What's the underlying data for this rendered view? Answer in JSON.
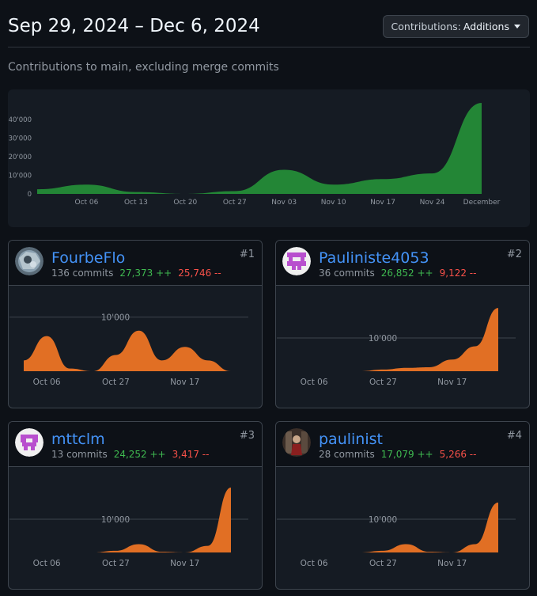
{
  "header": {
    "date_range": "Sep 29, 2024 – Dec 6, 2024",
    "contributions_label": "Contributions:",
    "contributions_value": "Additions"
  },
  "subtitle": "Contributions to main, excluding merge commits",
  "colors": {
    "main_area": "#238636",
    "card_area": "#e16f24",
    "added": "#3fb950",
    "deleted": "#f85149",
    "link": "#4493f8"
  },
  "chart_data": [
    {
      "type": "area",
      "title": "",
      "x": [
        "Sep 29",
        "Oct 06",
        "Oct 13",
        "Oct 20",
        "Oct 27",
        "Nov 03",
        "Nov 10",
        "Nov 17",
        "Nov 24",
        "December"
      ],
      "series": [
        {
          "values": [
            2500,
            5000,
            1000,
            0,
            1500,
            13000,
            5000,
            8000,
            11000,
            49000
          ]
        }
      ],
      "x_tick_labels": [
        "Oct 06",
        "Oct 13",
        "Oct 20",
        "Oct 27",
        "Nov 03",
        "Nov 10",
        "Nov 17",
        "Nov 24",
        "December"
      ],
      "y_tick_labels": [
        "0",
        "10'000",
        "20'000",
        "30'000",
        "40'000"
      ],
      "y_ticks": [
        0,
        10000,
        20000,
        30000,
        40000
      ],
      "ylim": [
        0,
        49000
      ],
      "grid": false
    },
    {
      "type": "area",
      "x": [
        "Sep 29",
        "Oct 06",
        "Oct 13",
        "Oct 20",
        "Oct 27",
        "Nov 03",
        "Nov 10",
        "Nov 17",
        "Nov 24",
        "Dec 01"
      ],
      "series": [
        {
          "values": [
            2000,
            6500,
            500,
            0,
            3000,
            7500,
            2000,
            4500,
            2000,
            0
          ]
        }
      ],
      "x_tick_labels": [
        "Oct 06",
        "Oct 27",
        "Nov 17"
      ],
      "y_tick_labels": [
        "10'000"
      ],
      "y_ticks": [
        10000
      ],
      "ylim": [
        0,
        12000
      ],
      "grid": true
    },
    {
      "type": "area",
      "x": [
        "Sep 29",
        "Oct 06",
        "Oct 13",
        "Oct 20",
        "Oct 27",
        "Nov 03",
        "Nov 10",
        "Nov 17",
        "Nov 24",
        "Dec 01"
      ],
      "series": [
        {
          "values": [
            0,
            0,
            0,
            0,
            500,
            1000,
            1200,
            3500,
            7500,
            19000
          ]
        }
      ],
      "x_tick_labels": [
        "Oct 06",
        "Oct 27",
        "Nov 17"
      ],
      "y_tick_labels": [
        "10'000"
      ],
      "y_ticks": [
        10000
      ],
      "ylim": [
        0,
        19500
      ],
      "grid": true
    },
    {
      "type": "area",
      "x": [
        "Sep 29",
        "Oct 06",
        "Oct 13",
        "Oct 20",
        "Oct 27",
        "Nov 03",
        "Nov 10",
        "Nov 17",
        "Nov 24",
        "Dec 01"
      ],
      "series": [
        {
          "values": [
            0,
            0,
            0,
            0,
            500,
            2500,
            200,
            0,
            2000,
            19500
          ]
        }
      ],
      "x_tick_labels": [
        "Oct 06",
        "Oct 27",
        "Nov 17"
      ],
      "y_tick_labels": [
        "10'000"
      ],
      "y_ticks": [
        10000
      ],
      "ylim": [
        0,
        19500
      ],
      "grid": true
    },
    {
      "type": "area",
      "x": [
        "Sep 29",
        "Oct 06",
        "Oct 13",
        "Oct 20",
        "Oct 27",
        "Nov 03",
        "Nov 10",
        "Nov 17",
        "Nov 24",
        "Dec 01"
      ],
      "series": [
        {
          "values": [
            0,
            0,
            0,
            0,
            500,
            2500,
            200,
            0,
            2500,
            15000
          ]
        }
      ],
      "x_tick_labels": [
        "Oct 06",
        "Oct 27",
        "Nov 17"
      ],
      "y_tick_labels": [
        "10'000"
      ],
      "y_ticks": [
        10000
      ],
      "ylim": [
        0,
        19500
      ],
      "grid": true
    }
  ],
  "contributors": [
    {
      "name": "FourbeFlo",
      "commits": "136 commits",
      "additions": "27,373 ++",
      "deletions": "25,746 --",
      "rank": "#1",
      "avatar": "photo-avatar"
    },
    {
      "name": "Pauliniste4053",
      "commits": "36 commits",
      "additions": "26,852 ++",
      "deletions": "9,122 --",
      "rank": "#2",
      "avatar": "identicon-avatar"
    },
    {
      "name": "mttclm",
      "commits": "13 commits",
      "additions": "24,252 ++",
      "deletions": "3,417 --",
      "rank": "#3",
      "avatar": "identicon-avatar"
    },
    {
      "name": "paulinist",
      "commits": "28 commits",
      "additions": "17,079 ++",
      "deletions": "5,266 --",
      "rank": "#4",
      "avatar": "photo-avatar"
    }
  ]
}
